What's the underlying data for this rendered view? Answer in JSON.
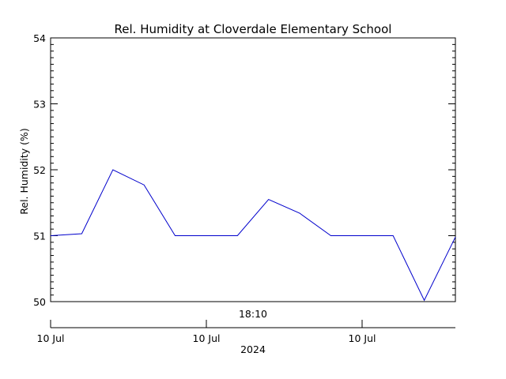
{
  "chart_data": {
    "type": "line",
    "title": "Rel. Humidity at Cloverdale Elementary School",
    "ylabel": "Rel. Humidity (%)",
    "ylim": [
      50,
      54
    ],
    "yticks": [
      "50",
      "51",
      "52",
      "53",
      "54"
    ],
    "time_axis": {
      "time_label": "18:10",
      "tick_labels": [
        "10 Jul",
        "10 Jul",
        "10 Jul"
      ],
      "year_label": "2024"
    },
    "grid": false,
    "series": [
      {
        "color": "#0000cc",
        "values": [
          51.0,
          51.03,
          52.0,
          51.77,
          51.0,
          51.0,
          51.0,
          51.55,
          51.34,
          51.0,
          51.0,
          51.0,
          50.02,
          50.98
        ]
      }
    ]
  }
}
